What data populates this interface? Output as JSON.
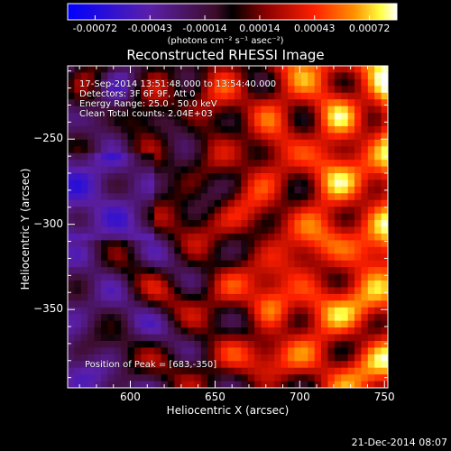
{
  "chart_data": {
    "type": "heatmap",
    "title": "Reconstructed RHESSI Image",
    "xlabel": "Heliocentric X (arcsec)",
    "ylabel": "Heliocentric Y (arcsec)",
    "xlim": [
      563,
      752
    ],
    "ylim": [
      -396,
      -207
    ],
    "x_ticks": [
      600,
      650,
      700,
      750
    ],
    "y_ticks": [
      -250,
      -300,
      -350
    ],
    "colorbar": {
      "ticks": [
        "-0.00072",
        "-0.00043",
        "-0.00014",
        "0.00014",
        "0.00043",
        "0.00072"
      ],
      "vmin": -0.00072,
      "vmax": 0.00072,
      "unit_label": "(photons cm⁻² s⁻¹ asec⁻²)"
    },
    "annotations": [
      "17-Sep-2014 13:51:48.000 to 13:54:40.000",
      "Detectors: 3F 6F 9F, Att 0",
      "Energy Range: 25.0 - 50.0 keV",
      "Clean     Total counts: 2.04E+03"
    ],
    "peak_label": "Position of Peak = [683,-350]",
    "peak": [
      683,
      -350
    ],
    "colors": [
      "#0000ff",
      "#5b1fa8",
      "#3c0c28",
      "#000000",
      "#8a0000",
      "#ff2000",
      "#ff9000",
      "#ffff40",
      "#ffffff"
    ]
  },
  "footer": {
    "timestamp": "21-Dec-2014 08:07"
  }
}
